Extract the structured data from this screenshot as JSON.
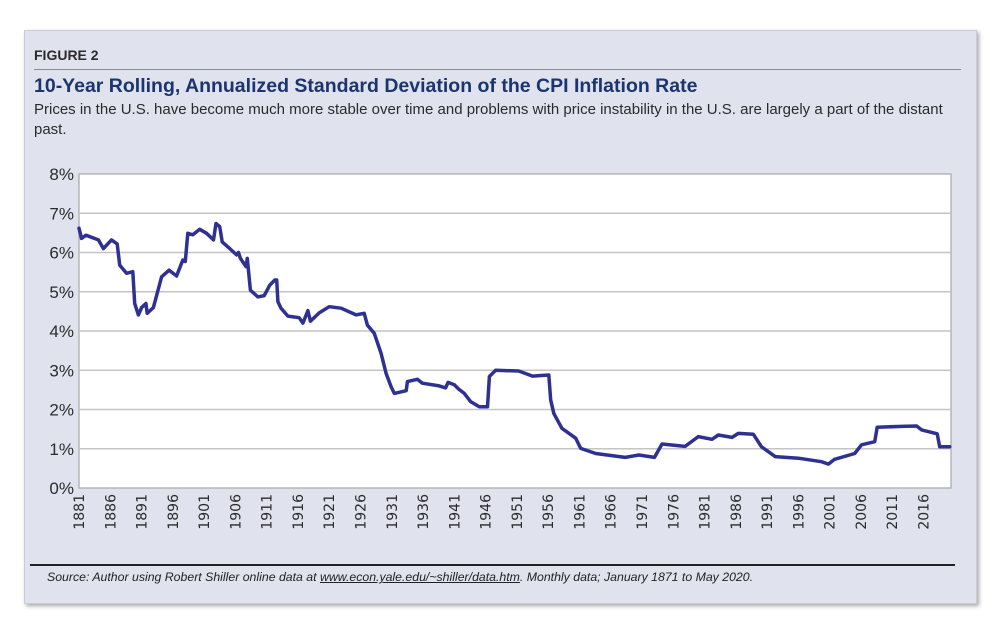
{
  "figure_label": "FIGURE 2",
  "title": "10-Year Rolling, Annualized Standard Deviation of the CPI Inflation Rate",
  "subtitle": "Prices in the U.S. have become much more stable over time and problems with price instability in the U.S. are largely a part of the distant past.",
  "source": {
    "prefix": "Source: Author using Robert Shiller online data at ",
    "link": "www.econ.yale.edu/~shiller/data.htm",
    "suffix": ". Monthly data; January 1871 to May 2020."
  },
  "colors": {
    "line": "#2e3192",
    "panel": "#e0e2ee",
    "title": "#1a3570",
    "grid": "#c4c4c4"
  },
  "chart_data": {
    "type": "line",
    "title": "10-Year Rolling, Annualized Standard Deviation of the CPI Inflation Rate",
    "xlabel": "",
    "ylabel": "",
    "xlim": [
      1881,
      2020.4
    ],
    "ylim": [
      0,
      8
    ],
    "grid": "horizontal",
    "legend": "none",
    "x_ticks": [
      "1881",
      "1886",
      "1891",
      "1896",
      "1901",
      "1906",
      "1911",
      "1916",
      "1921",
      "1926",
      "1931",
      "1936",
      "1941",
      "1946",
      "1951",
      "1956",
      "1961",
      "1966",
      "1971",
      "1976",
      "1981",
      "1986",
      "1991",
      "1996",
      "2001",
      "2006",
      "2011",
      "2016"
    ],
    "y_ticks": [
      "0%",
      "1%",
      "2%",
      "3%",
      "4%",
      "5%",
      "6%",
      "7%",
      "8%"
    ],
    "series": [
      {
        "x": [
          1881.0,
          1881.4,
          1882.1,
          1884.1,
          1884.9,
          1886.2,
          1887.1,
          1887.5,
          1888.6,
          1889.6,
          1889.9,
          1890.5,
          1891.0,
          1891.7,
          1891.9,
          1892.9,
          1893.5,
          1894.2,
          1895.4,
          1896.6,
          1897.6,
          1898.0,
          1898.4,
          1899.2,
          1900.3,
          1901.4,
          1902.5,
          1902.9,
          1903.5,
          1903.9,
          1905.1,
          1906.2,
          1906.5,
          1906.8,
          1907.7,
          1907.9,
          1908.4,
          1909.6,
          1910.6,
          1911.5,
          1912.3,
          1912.6,
          1912.8,
          1913.3,
          1914.4,
          1916.2,
          1916.8,
          1917.6,
          1918.0,
          1919.4,
          1921.0,
          1922.9,
          1925.3,
          1926.6,
          1927.1,
          1928.2,
          1929.3,
          1930.1,
          1930.9,
          1931.4,
          1933.3,
          1933.5,
          1935.1,
          1935.9,
          1938.6,
          1939.6,
          1940.0,
          1941.0,
          1941.7,
          1942.6,
          1943.6,
          1945.0,
          1946.3,
          1946.6,
          1947.6,
          1951.3,
          1953.5,
          1956.1,
          1956.4,
          1956.9,
          1958.2,
          1960.4,
          1961.2,
          1963.6,
          1968.3,
          1970.5,
          1973.0,
          1974.2,
          1977.9,
          1980.0,
          1982.2,
          1983.2,
          1985.4,
          1986.4,
          1988.8,
          1990.1,
          1992.3,
          1996.0,
          1999.7,
          2000.8,
          2001.8,
          2005.0,
          2006.1,
          2008.2,
          2008.6,
          2012.5,
          2014.9,
          2015.7,
          2018.2,
          2018.6,
          2020.2
        ],
        "y": [
          6.62,
          6.36,
          6.44,
          6.32,
          6.1,
          6.32,
          6.22,
          5.68,
          5.47,
          5.51,
          4.7,
          4.41,
          4.6,
          4.7,
          4.45,
          4.6,
          4.96,
          5.38,
          5.55,
          5.4,
          5.81,
          5.77,
          6.49,
          6.45,
          6.59,
          6.49,
          6.32,
          6.74,
          6.66,
          6.27,
          6.1,
          5.94,
          6.0,
          5.85,
          5.64,
          5.85,
          5.04,
          4.87,
          4.9,
          5.17,
          5.3,
          5.3,
          4.75,
          4.58,
          4.38,
          4.34,
          4.2,
          4.52,
          4.25,
          4.46,
          4.62,
          4.58,
          4.41,
          4.45,
          4.15,
          3.94,
          3.43,
          2.92,
          2.58,
          2.41,
          2.48,
          2.71,
          2.77,
          2.67,
          2.6,
          2.55,
          2.69,
          2.63,
          2.52,
          2.41,
          2.2,
          2.07,
          2.07,
          2.84,
          3.0,
          2.98,
          2.85,
          2.88,
          2.24,
          1.9,
          1.52,
          1.27,
          1.01,
          0.88,
          0.78,
          0.84,
          0.78,
          1.12,
          1.06,
          1.31,
          1.24,
          1.35,
          1.29,
          1.39,
          1.37,
          1.05,
          0.8,
          0.76,
          0.67,
          0.61,
          0.73,
          0.88,
          1.1,
          1.18,
          1.55,
          1.57,
          1.58,
          1.48,
          1.38,
          1.05,
          1.05
        ]
      }
    ]
  }
}
